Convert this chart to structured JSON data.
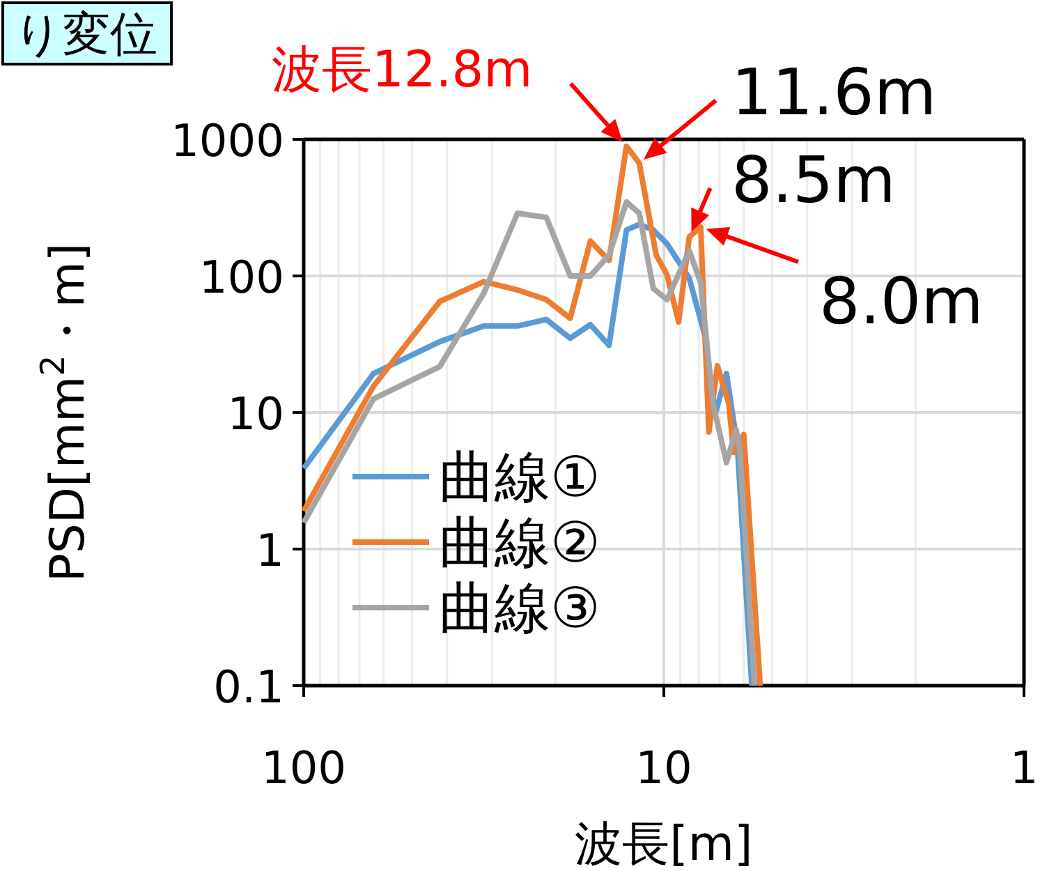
{
  "chart_data": {
    "type": "line",
    "title": "り変位",
    "xlabel": "波長[m]",
    "ylabel": "PSD[mm$^{2}$・m]",
    "log": "xy",
    "grid": true,
    "legend": "bottom left",
    "line_style": "solid",
    "xlim": [
      100,
      1
    ],
    "xticks": [
      100,
      10,
      1
    ],
    "ylim": [
      0.1,
      1000
    ],
    "yticks": [
      0.1,
      1,
      10,
      100,
      1000
    ],
    "annotations": [
      {
        "text": "波長12.8m",
        "x": 12.7,
        "y": 890
      },
      {
        "text": "11.6m",
        "x": 11.7,
        "y": 670
      },
      {
        "text": "8.5m",
        "x": 8.5,
        "y": 193
      },
      {
        "text": "8.0m",
        "x": 7.9,
        "y": 228
      }
    ],
    "series": [
      {
        "name": "曲線①",
        "color": "#5b9bd5",
        "x": [
          100,
          64,
          41.9,
          31.6,
          25.5,
          21.2,
          18.2,
          16,
          14.2,
          12.7,
          11.7,
          10.7,
          9.8,
          8.5,
          7.7,
          7.2,
          6.7,
          6.25,
          5.7
        ],
        "values": [
          3.9,
          19.3,
          33,
          43,
          43,
          48,
          35,
          44,
          31,
          217,
          239,
          217,
          172,
          96,
          37,
          9.8,
          19.3,
          5.7,
          0.1
        ]
      },
      {
        "name": "曲線②",
        "color": "#ed7d31",
        "x": [
          100,
          64,
          41.9,
          31.6,
          25.5,
          21.2,
          18.2,
          16,
          14.2,
          12.7,
          11.7,
          10.5,
          9.8,
          9.1,
          8.5,
          7.9,
          7.5,
          7.1,
          6.6,
          6.4,
          6.0,
          5.4
        ],
        "values": [
          1.9,
          15.6,
          65,
          91,
          79,
          67,
          49,
          180,
          130,
          890,
          670,
          142,
          102,
          46,
          193,
          228,
          7.2,
          22,
          11.5,
          5.1,
          6.9,
          0.1
        ]
      },
      {
        "name": "曲線③",
        "color": "#a5a5a5",
        "x": [
          100,
          64,
          41.9,
          31.6,
          25.5,
          21.2,
          18.2,
          16,
          14.2,
          12.7,
          11.7,
          10.7,
          9.8,
          8.5,
          7.9,
          7.3,
          6.7,
          6.3,
          6.15,
          5.6
        ],
        "values": [
          1.56,
          12.6,
          21.7,
          75,
          288,
          268,
          100,
          100,
          142,
          348,
          288,
          81,
          67,
          153,
          89,
          11.5,
          4.3,
          7.5,
          5.3,
          0.1
        ]
      }
    ]
  }
}
